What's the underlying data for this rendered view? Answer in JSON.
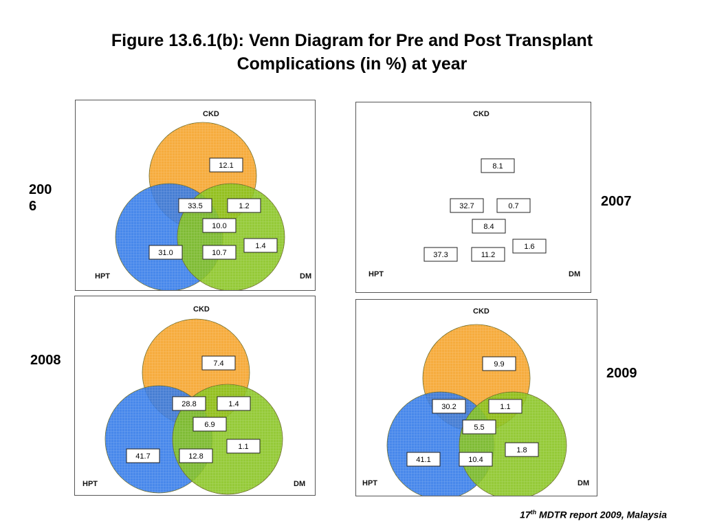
{
  "title": {
    "line1": "Figure 13.6.1(b): Venn Diagram for Pre and Post Transplant",
    "line2": "Complications (in %) at year"
  },
  "set_labels": {
    "ckd": "CKD",
    "hpt": "HPT",
    "dm": "DM"
  },
  "colors": {
    "ckd": "#f5a023",
    "hpt": "#2f78e8",
    "dm": "#86c31c"
  },
  "diagrams": [
    {
      "year": "2006",
      "year_display": "200\n6",
      "values": {
        "ckd_only": "12.1",
        "ckd_hpt": "33.5",
        "ckd_dm": "1.2",
        "all_three": "10.0",
        "hpt_only": "31.0",
        "hpt_dm": "10.7",
        "dm_only": "1.4"
      }
    },
    {
      "year": "2007",
      "year_display": "2007",
      "values": {
        "ckd_only": "8.1",
        "ckd_hpt": "32.7",
        "ckd_dm": "0.7",
        "all_three": "8.4",
        "hpt_only": "37.3",
        "hpt_dm": "11.2",
        "dm_only": "1.6"
      }
    },
    {
      "year": "2008",
      "year_display": "2008",
      "values": {
        "ckd_only": "7.4",
        "ckd_hpt": "28.8",
        "ckd_dm": "1.4",
        "all_three": "6.9",
        "hpt_only": "41.7",
        "hpt_dm": "12.8",
        "dm_only": "1.1"
      }
    },
    {
      "year": "2009",
      "year_display": "2009",
      "values": {
        "ckd_only": "9.9",
        "ckd_hpt": "30.2",
        "ckd_dm": "1.1",
        "all_three": "5.5",
        "hpt_only": "41.1",
        "hpt_dm": "10.4",
        "dm_only": "1.8"
      }
    }
  ],
  "footer": {
    "superscript_num": "17",
    "superscript": "th",
    "text": " MDTR report 2009, Malaysia"
  }
}
